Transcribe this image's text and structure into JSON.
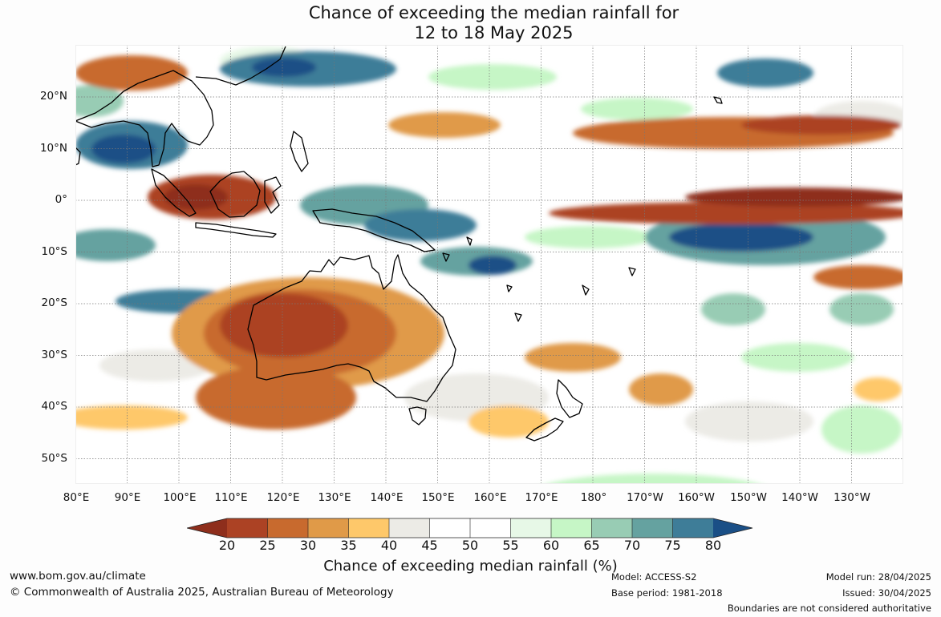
{
  "title": {
    "line1": "Chance of exceeding the median rainfall for",
    "line2": "12 to 18 May 2025"
  },
  "lat_ticks": [
    "20°N",
    "10°N",
    "0°",
    "10°S",
    "20°S",
    "30°S",
    "40°S",
    "50°S"
  ],
  "lon_ticks": [
    "80°E",
    "90°E",
    "100°E",
    "110°E",
    "120°E",
    "130°E",
    "140°E",
    "150°E",
    "160°E",
    "170°E",
    "180°",
    "170°W",
    "160°W",
    "150°W",
    "140°W",
    "130°W"
  ],
  "colorbar": {
    "labels": [
      "20",
      "25",
      "30",
      "35",
      "40",
      "45",
      "50",
      "55",
      "60",
      "65",
      "70",
      "75",
      "80"
    ],
    "colors": [
      "#8e2e1c",
      "#ac4224",
      "#c86a2e",
      "#e09a48",
      "#fec86a",
      "#ecebe6",
      "#ffffff",
      "#ffffff",
      "#e7f8e7",
      "#c6f6c6",
      "#98ccb4",
      "#65a2a0",
      "#3e7d98",
      "#1a4f86"
    ],
    "title": "Chance of exceeding median rainfall (%)"
  },
  "footer": {
    "website": "www.bom.gov.au/climate",
    "copyright": "© Commonwealth of Australia 2025, Australian Bureau of Meteorology",
    "model": "Model: ACCESS-S2",
    "base_period": "Base period: 1981-2018",
    "model_run": "Model run: 28/04/2025",
    "issued": "Issued: 30/04/2025",
    "disclaimer": "Boundaries are not considered authoritative"
  }
}
